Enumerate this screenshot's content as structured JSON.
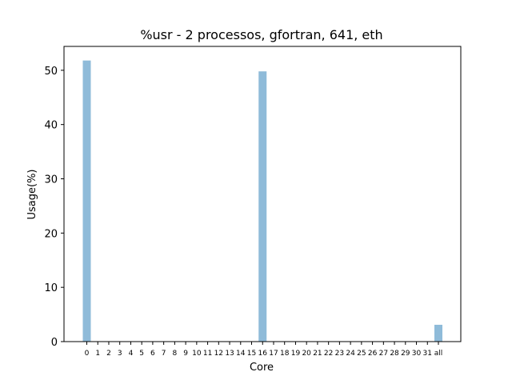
{
  "chart_data": {
    "type": "bar",
    "title": "%usr - 2 processos, gfortran, 641, eth",
    "xlabel": "Core",
    "ylabel": "Usage(%)",
    "categories": [
      "0",
      "1",
      "2",
      "3",
      "4",
      "5",
      "6",
      "7",
      "8",
      "9",
      "10",
      "11",
      "12",
      "13",
      "14",
      "15",
      "16",
      "17",
      "18",
      "19",
      "20",
      "21",
      "22",
      "23",
      "24",
      "25",
      "26",
      "27",
      "28",
      "29",
      "30",
      "31",
      "all"
    ],
    "values": [
      51.8,
      0,
      0,
      0,
      0,
      0,
      0,
      0,
      0,
      0,
      0,
      0,
      0,
      0,
      0,
      0,
      49.8,
      0,
      0,
      0,
      0,
      0,
      0,
      0,
      0,
      0,
      0,
      0,
      0,
      0,
      0,
      0,
      3.1
    ],
    "ylim": [
      0,
      54.4
    ],
    "yticks": [
      0,
      10,
      20,
      30,
      40,
      50
    ],
    "bar_color": "#8fbbd9",
    "grid": false,
    "legend": "none"
  }
}
